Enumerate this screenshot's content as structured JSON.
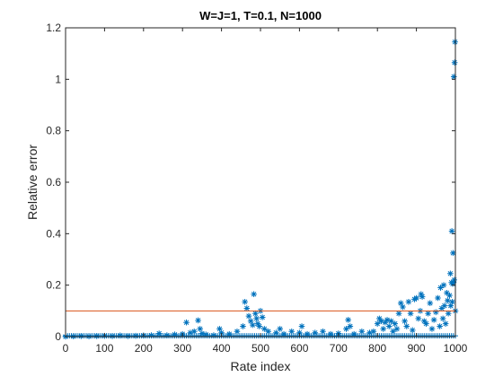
{
  "chart_data": {
    "type": "scatter",
    "title": "W=J=1, T=0.1, N=1000",
    "xlabel": "Rate index",
    "ylabel": "Relative error",
    "xlim": [
      0,
      1000
    ],
    "ylim": [
      0,
      1.2
    ],
    "xticks": [
      "0",
      "100",
      "200",
      "300",
      "400",
      "500",
      "600",
      "700",
      "800",
      "900",
      "1000"
    ],
    "yticks": [
      "0",
      "0.2",
      "0.4",
      "0.6",
      "0.8",
      "1",
      "1.2"
    ],
    "grid": false,
    "marker": "*",
    "series_color": "#0072BD",
    "reference_line": {
      "y": 0.1,
      "x_range": [
        0,
        1000
      ],
      "color": "#D95319"
    },
    "series": [
      {
        "x": [
          0,
          20,
          40,
          60,
          80,
          100,
          120,
          140,
          160,
          180,
          200,
          220,
          240,
          260,
          280,
          300,
          310,
          320,
          330,
          340,
          345,
          350,
          360,
          380,
          395,
          400,
          420,
          440,
          455,
          460,
          465,
          470,
          475,
          480,
          483,
          487,
          490,
          493,
          497,
          500,
          505,
          510,
          520,
          540,
          550,
          560,
          580,
          600,
          606,
          620,
          640,
          660,
          680,
          700,
          720,
          725,
          730,
          740,
          760,
          780,
          790,
          800,
          805,
          810,
          815,
          820,
          825,
          830,
          835,
          840,
          845,
          850,
          855,
          860,
          865,
          870,
          875,
          880,
          885,
          890,
          895,
          900,
          905,
          910,
          912,
          915,
          920,
          925,
          930,
          935,
          940,
          945,
          950,
          955,
          960,
          962,
          965,
          968,
          970,
          972,
          975,
          978,
          980,
          982,
          985,
          987,
          988,
          990,
          991,
          992,
          993,
          994,
          995,
          996,
          997,
          998,
          999,
          1000
        ],
        "y": [
          0,
          0.001,
          0.002,
          0.001,
          0.002,
          0.003,
          0.002,
          0.004,
          0.002,
          0.003,
          0.004,
          0.005,
          0.012,
          0.005,
          0.008,
          0.01,
          0.055,
          0.015,
          0.02,
          0.063,
          0.03,
          0.012,
          0.008,
          0.005,
          0.03,
          0.015,
          0.01,
          0.02,
          0.04,
          0.135,
          0.11,
          0.08,
          0.06,
          0.045,
          0.165,
          0.09,
          0.07,
          0.05,
          0.04,
          0.1,
          0.075,
          0.03,
          0.02,
          0.015,
          0.03,
          0.01,
          0.02,
          0.015,
          0.04,
          0.01,
          0.015,
          0.02,
          0.01,
          0.012,
          0.03,
          0.065,
          0.04,
          0.01,
          0.02,
          0.015,
          0.02,
          0.05,
          0.07,
          0.06,
          0.03,
          0.055,
          0.065,
          0.04,
          0.06,
          0.02,
          0.05,
          0.03,
          0.09,
          0.13,
          0.115,
          0.06,
          0.04,
          0.135,
          0.09,
          0.025,
          0.145,
          0.15,
          0.07,
          0.1,
          0.165,
          0.155,
          0.06,
          0.05,
          0.09,
          0.13,
          0.03,
          0.065,
          0.095,
          0.15,
          0.04,
          0.19,
          0.11,
          0.07,
          0.2,
          0.12,
          0.05,
          0.17,
          0.14,
          0.09,
          0.16,
          0.245,
          0.12,
          0.21,
          0.41,
          0.135,
          0.205,
          0.325,
          0.21,
          1.01,
          0.22,
          1.065,
          1.145,
          0.1
        ]
      }
    ]
  }
}
